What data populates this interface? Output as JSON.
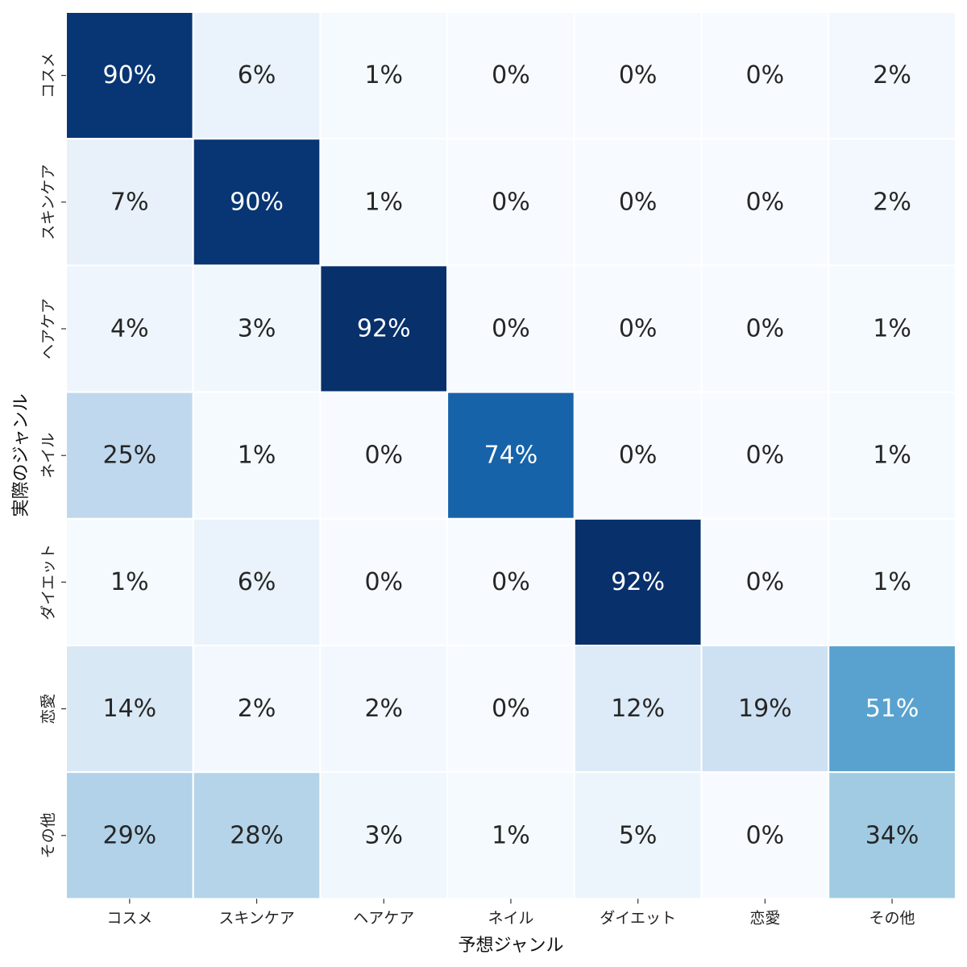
{
  "chart_data": {
    "type": "heatmap",
    "xlabel": "予想ジャンル",
    "ylabel": "実際のジャンル",
    "x_categories": [
      "コスメ",
      "スキンケア",
      "ヘアケア",
      "ネイル",
      "ダイエット",
      "恋愛",
      "その他"
    ],
    "y_categories": [
      "コスメ",
      "スキンケア",
      "ヘアケア",
      "ネイル",
      "ダイエット",
      "恋愛",
      "その他"
    ],
    "values": [
      [
        90,
        6,
        1,
        0,
        0,
        0,
        2
      ],
      [
        7,
        90,
        1,
        0,
        0,
        0,
        2
      ],
      [
        4,
        3,
        92,
        0,
        0,
        0,
        1
      ],
      [
        25,
        1,
        0,
        74,
        0,
        0,
        1
      ],
      [
        1,
        6,
        0,
        0,
        92,
        0,
        1
      ],
      [
        14,
        2,
        2,
        0,
        12,
        19,
        51
      ],
      [
        29,
        28,
        3,
        1,
        5,
        0,
        34
      ]
    ],
    "value_suffix": "%",
    "colormap": "Blues",
    "colorbar": false,
    "grid": false
  }
}
